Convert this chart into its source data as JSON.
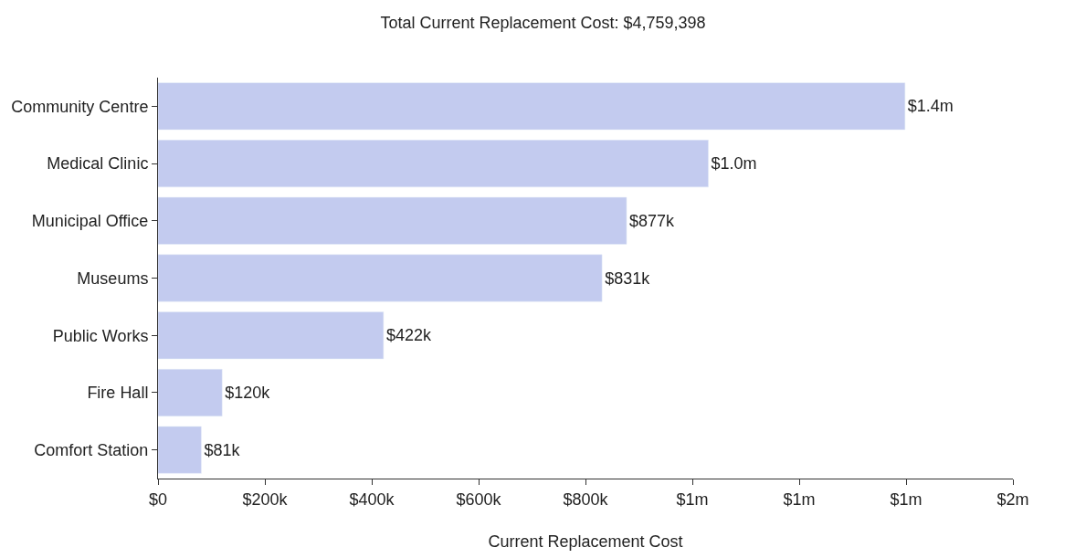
{
  "chart_data": {
    "type": "bar",
    "orientation": "horizontal",
    "title": "Total Current Replacement Cost: $4,759,398",
    "xlabel": "Current Replacement Cost",
    "categories": [
      "Community Centre",
      "Medical Clinic",
      "Municipal Office",
      "Museums",
      "Public Works",
      "Fire Hall",
      "Comfort Station"
    ],
    "values": [
      1398000,
      1030000,
      877000,
      831000,
      422000,
      120000,
      81000
    ],
    "value_labels": [
      "$1.4m",
      "$1.0m",
      "$877k",
      "$831k",
      "$422k",
      "$120k",
      "$81k"
    ],
    "color": "#c3cbef",
    "xlim": [
      0,
      1600000
    ],
    "xticks": [
      {
        "value": 0,
        "label": "$0"
      },
      {
        "value": 200000,
        "label": "$200k"
      },
      {
        "value": 400000,
        "label": "$400k"
      },
      {
        "value": 600000,
        "label": "$600k"
      },
      {
        "value": 800000,
        "label": "$800k"
      },
      {
        "value": 1000000,
        "label": "$1m"
      },
      {
        "value": 1200000,
        "label": "$1m"
      },
      {
        "value": 1400000,
        "label": "$1m"
      },
      {
        "value": 1600000,
        "label": "$2m"
      }
    ]
  }
}
